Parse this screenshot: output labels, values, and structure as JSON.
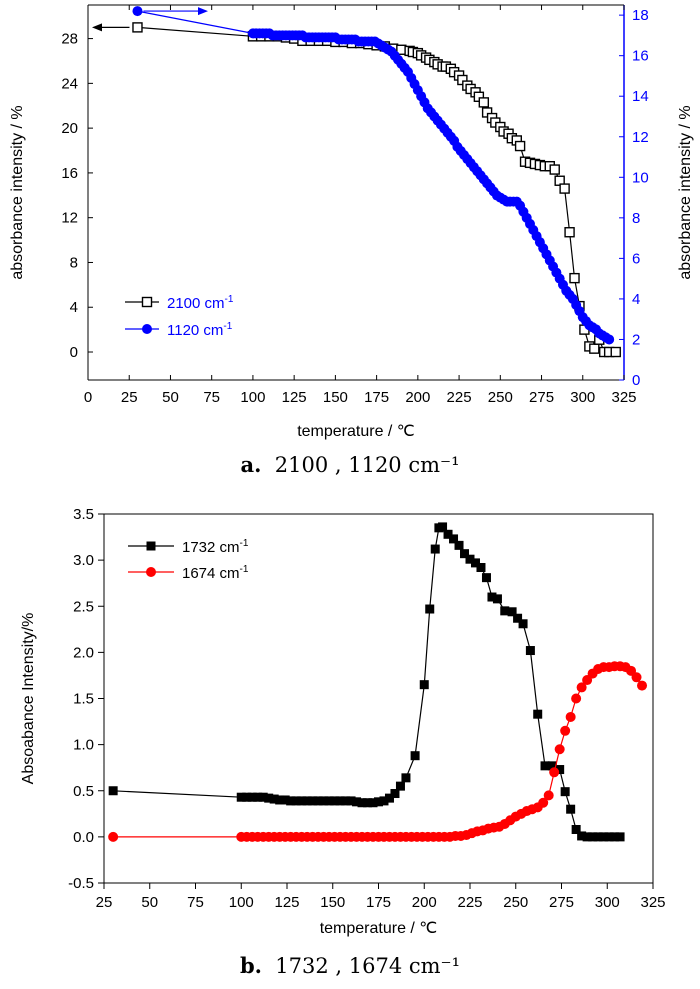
{
  "chart_data": [
    {
      "type": "scatter",
      "xlabel": "temperature / ℃",
      "ylabel": "absorbance intensity / %",
      "y2label": "absorbance intensity / %",
      "xlim": [
        0,
        325
      ],
      "ylim": [
        -2.5,
        31
      ],
      "y2lim": [
        0,
        18.5
      ],
      "xticks": [
        0,
        25,
        50,
        75,
        100,
        125,
        150,
        175,
        200,
        225,
        250,
        275,
        300,
        325
      ],
      "yticks": [
        0,
        4,
        8,
        12,
        16,
        20,
        24,
        28
      ],
      "y2ticks": [
        0,
        2,
        4,
        6,
        8,
        10,
        12,
        14,
        16,
        18
      ],
      "legend_position": "bottom-left",
      "series": [
        {
          "name": "2100 cm-1",
          "axis": "left",
          "marker": "open-square",
          "color": "#000000",
          "x": [
            30,
            100,
            105,
            110,
            115,
            120,
            125,
            130,
            135,
            140,
            145,
            150,
            155,
            160,
            165,
            170,
            175,
            180,
            185,
            190,
            195,
            197,
            200,
            202,
            205,
            207,
            210,
            212,
            215,
            217,
            220,
            222,
            225,
            227,
            230,
            232,
            235,
            237,
            240,
            242,
            245,
            247,
            250,
            252,
            255,
            257,
            260,
            262,
            265,
            268,
            271,
            274,
            277,
            280,
            283,
            286,
            289,
            292,
            295,
            298,
            301,
            304,
            307,
            310,
            313,
            316,
            320
          ],
          "y": [
            29.0,
            28.2,
            28.2,
            28.2,
            28.2,
            28.1,
            28.0,
            27.8,
            27.8,
            27.8,
            27.8,
            27.7,
            27.7,
            27.6,
            27.6,
            27.5,
            27.4,
            27.3,
            27.1,
            27.0,
            26.9,
            26.8,
            26.7,
            26.5,
            26.3,
            26.1,
            25.9,
            25.7,
            25.5,
            25.5,
            25.3,
            25.0,
            24.7,
            24.3,
            23.8,
            23.5,
            23.2,
            22.8,
            22.3,
            21.4,
            20.9,
            20.5,
            20.1,
            19.7,
            19.5,
            19.1,
            18.9,
            18.4,
            17.0,
            16.9,
            16.8,
            16.7,
            16.6,
            16.6,
            16.3,
            15.3,
            14.6,
            10.7,
            6.6,
            4.1,
            2.0,
            0.5,
            0.3,
            1.1,
            0.0,
            0.0,
            0.0
          ]
        },
        {
          "name": "1120 cm-1",
          "axis": "right",
          "marker": "filled-circle",
          "color": "#0000ff",
          "x": [
            30,
            100,
            102,
            104,
            106,
            108,
            110,
            112,
            114,
            116,
            118,
            120,
            122,
            124,
            126,
            128,
            130,
            132,
            134,
            136,
            138,
            140,
            142,
            144,
            146,
            148,
            150,
            152,
            154,
            156,
            158,
            160,
            162,
            164,
            166,
            168,
            170,
            172,
            174,
            176,
            178,
            180,
            182,
            184,
            186,
            188,
            190,
            192,
            194,
            196,
            198,
            200,
            202,
            204,
            206,
            208,
            210,
            212,
            214,
            216,
            218,
            220,
            222,
            224,
            226,
            228,
            230,
            232,
            234,
            236,
            238,
            240,
            242,
            244,
            246,
            248,
            250,
            252,
            254,
            256,
            258,
            260,
            262,
            264,
            266,
            268,
            270,
            272,
            274,
            276,
            278,
            280,
            282,
            284,
            286,
            288,
            290,
            292,
            294,
            296,
            298,
            300,
            302,
            304,
            306,
            308,
            310,
            312,
            314,
            316
          ],
          "y": [
            18.2,
            17.1,
            17.1,
            17.1,
            17.1,
            17.1,
            17.1,
            17.0,
            17.0,
            17.0,
            17.0,
            17.0,
            17.0,
            17.0,
            17.0,
            17.0,
            17.0,
            16.9,
            16.9,
            16.9,
            16.9,
            16.9,
            16.9,
            16.9,
            16.9,
            16.9,
            16.9,
            16.8,
            16.8,
            16.8,
            16.8,
            16.8,
            16.8,
            16.7,
            16.7,
            16.7,
            16.7,
            16.7,
            16.7,
            16.6,
            16.5,
            16.4,
            16.3,
            16.2,
            16.0,
            15.8,
            15.6,
            15.4,
            15.2,
            14.9,
            14.6,
            14.3,
            14.0,
            13.7,
            13.4,
            13.2,
            13.0,
            12.8,
            12.6,
            12.4,
            12.2,
            12.0,
            11.8,
            11.5,
            11.3,
            11.1,
            10.9,
            10.7,
            10.5,
            10.3,
            10.1,
            9.9,
            9.7,
            9.5,
            9.3,
            9.1,
            9.0,
            8.9,
            8.8,
            8.8,
            8.8,
            8.8,
            8.6,
            8.3,
            8.0,
            7.7,
            7.4,
            7.1,
            6.8,
            6.5,
            6.2,
            5.9,
            5.6,
            5.3,
            5.0,
            4.7,
            4.4,
            4.2,
            4.0,
            3.7,
            3.4,
            3.1,
            2.9,
            2.7,
            2.6,
            2.5,
            2.3,
            2.2,
            2.1,
            2.0
          ]
        }
      ]
    },
    {
      "type": "scatter",
      "xlabel": "temperature / ℃",
      "ylabel": "Absoabance Intensity/%",
      "xlim": [
        25,
        325
      ],
      "ylim": [
        -0.5,
        3.5
      ],
      "xticks": [
        25,
        50,
        75,
        100,
        125,
        150,
        175,
        200,
        225,
        250,
        275,
        300,
        325
      ],
      "yticks": [
        -0.5,
        0.0,
        0.5,
        1.0,
        1.5,
        2.0,
        2.5,
        3.0,
        3.5
      ],
      "legend_position": "top-left",
      "series": [
        {
          "name": "1732 cm-1",
          "marker": "filled-square",
          "color": "#000000",
          "x": [
            30,
            100,
            103,
            106,
            109,
            112,
            115,
            118,
            121,
            124,
            127,
            130,
            133,
            136,
            139,
            142,
            145,
            148,
            151,
            154,
            157,
            160,
            163,
            166,
            169,
            172,
            175,
            178,
            181,
            184,
            187,
            190,
            195,
            200,
            203,
            206,
            208,
            210,
            213,
            216,
            219,
            222,
            225,
            228,
            231,
            234,
            237,
            240,
            244,
            248,
            251,
            254,
            258,
            262,
            266,
            270,
            274,
            277,
            280,
            283,
            286,
            289,
            292,
            295,
            298,
            301,
            304,
            307
          ],
          "y": [
            0.5,
            0.43,
            0.43,
            0.43,
            0.43,
            0.43,
            0.42,
            0.41,
            0.4,
            0.4,
            0.39,
            0.39,
            0.39,
            0.39,
            0.39,
            0.39,
            0.39,
            0.39,
            0.39,
            0.39,
            0.39,
            0.39,
            0.38,
            0.37,
            0.37,
            0.37,
            0.38,
            0.39,
            0.42,
            0.47,
            0.55,
            0.64,
            0.88,
            1.65,
            2.47,
            3.12,
            3.35,
            3.36,
            3.28,
            3.23,
            3.16,
            3.07,
            3.01,
            2.97,
            2.92,
            2.81,
            2.6,
            2.58,
            2.45,
            2.44,
            2.37,
            2.31,
            2.02,
            1.33,
            0.77,
            0.77,
            0.73,
            0.49,
            0.3,
            0.08,
            0.01,
            0.0,
            0.0,
            0.0,
            0.0,
            0.0,
            0.0,
            0.0
          ]
        },
        {
          "name": "1674 cm-1",
          "marker": "filled-circle",
          "color": "#ff0000",
          "x": [
            30,
            100,
            103,
            106,
            109,
            112,
            115,
            118,
            121,
            124,
            127,
            130,
            133,
            136,
            139,
            142,
            145,
            148,
            151,
            154,
            157,
            160,
            163,
            166,
            169,
            172,
            175,
            178,
            181,
            184,
            187,
            190,
            193,
            196,
            199,
            202,
            205,
            208,
            211,
            214,
            217,
            220,
            223,
            226,
            229,
            232,
            235,
            238,
            241,
            244,
            247,
            250,
            253,
            256,
            259,
            262,
            265,
            268,
            271,
            274,
            277,
            280,
            283,
            286,
            289,
            292,
            295,
            298,
            301,
            304,
            307,
            310,
            313,
            316,
            319
          ],
          "y": [
            0.0,
            0.0,
            0.0,
            0.0,
            0.0,
            0.0,
            0.0,
            0.0,
            0.0,
            0.0,
            0.0,
            0.0,
            0.0,
            0.0,
            0.0,
            0.0,
            0.0,
            0.0,
            0.0,
            0.0,
            0.0,
            0.0,
            0.0,
            0.0,
            0.0,
            0.0,
            0.0,
            0.0,
            0.0,
            0.0,
            0.0,
            0.0,
            0.0,
            0.0,
            0.0,
            0.0,
            0.0,
            0.0,
            0.0,
            0.0,
            0.01,
            0.01,
            0.02,
            0.04,
            0.06,
            0.07,
            0.09,
            0.1,
            0.11,
            0.14,
            0.18,
            0.22,
            0.25,
            0.28,
            0.3,
            0.32,
            0.37,
            0.45,
            0.7,
            0.95,
            1.15,
            1.3,
            1.5,
            1.62,
            1.7,
            1.77,
            1.82,
            1.84,
            1.84,
            1.85,
            1.85,
            1.84,
            1.8,
            1.73,
            1.64
          ]
        }
      ]
    }
  ],
  "captions": [
    {
      "label": "a.",
      "text": "2100 , 1120 cm⁻¹"
    },
    {
      "label": "b.",
      "text": "1732 , 1674 cm⁻¹"
    }
  ]
}
